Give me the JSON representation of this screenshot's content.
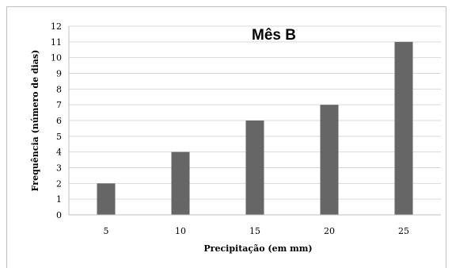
{
  "chart_data": {
    "type": "bar",
    "title": "Mês B",
    "xlabel": "Precipitação (em mm)",
    "ylabel": "Frequência (número de dias)",
    "categories": [
      "5",
      "10",
      "15",
      "20",
      "25"
    ],
    "values": [
      2,
      4,
      6,
      7,
      11
    ],
    "ylim": [
      0,
      12
    ],
    "yticks": [
      0,
      1,
      2,
      3,
      4,
      5,
      6,
      7,
      8,
      9,
      10,
      11,
      12
    ],
    "grid": true,
    "bar_color": "#666666",
    "grid_color": "#d9d9d9"
  }
}
